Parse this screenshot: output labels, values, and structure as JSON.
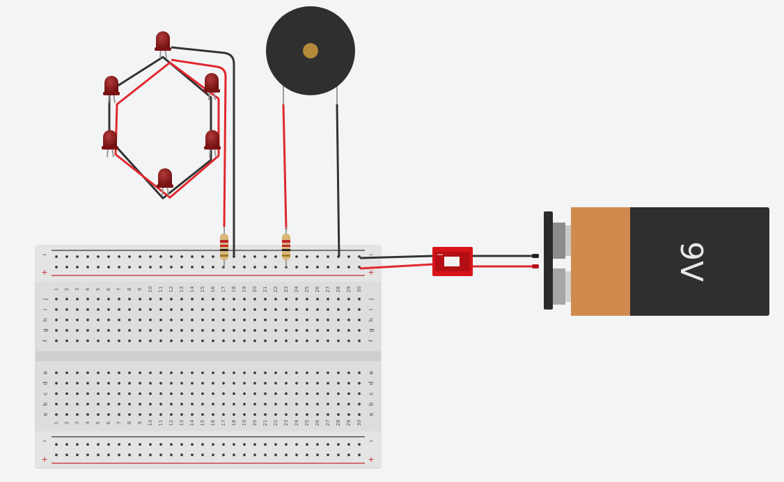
{
  "canvas": {
    "background": "#f3f4f6"
  },
  "breadboard": {
    "columns": [
      "1",
      "2",
      "3",
      "4",
      "5",
      "6",
      "7",
      "8",
      "9",
      "10",
      "11",
      "12",
      "13",
      "14",
      "15",
      "16",
      "17",
      "18",
      "19",
      "20",
      "21",
      "22",
      "23",
      "24",
      "25",
      "26",
      "27",
      "28",
      "29",
      "30"
    ],
    "top_rows": [
      "j",
      "i",
      "h",
      "g",
      "f"
    ],
    "bottom_rows": [
      "e",
      "d",
      "c",
      "b",
      "a"
    ],
    "rail_minus": "–",
    "rail_plus": "+"
  },
  "battery": {
    "label": "9V",
    "colors": {
      "body": "#2f2f2f",
      "cap": "#d08a4e"
    }
  },
  "leds": {
    "count": 6,
    "color": "#8b1a1a"
  },
  "buzzer": {
    "color": "#2f2f2f",
    "center_color": "#b38a3a"
  },
  "switch": {
    "color": "#d7141a"
  },
  "wires": {
    "red": "#e0282e",
    "black": "#333333"
  }
}
